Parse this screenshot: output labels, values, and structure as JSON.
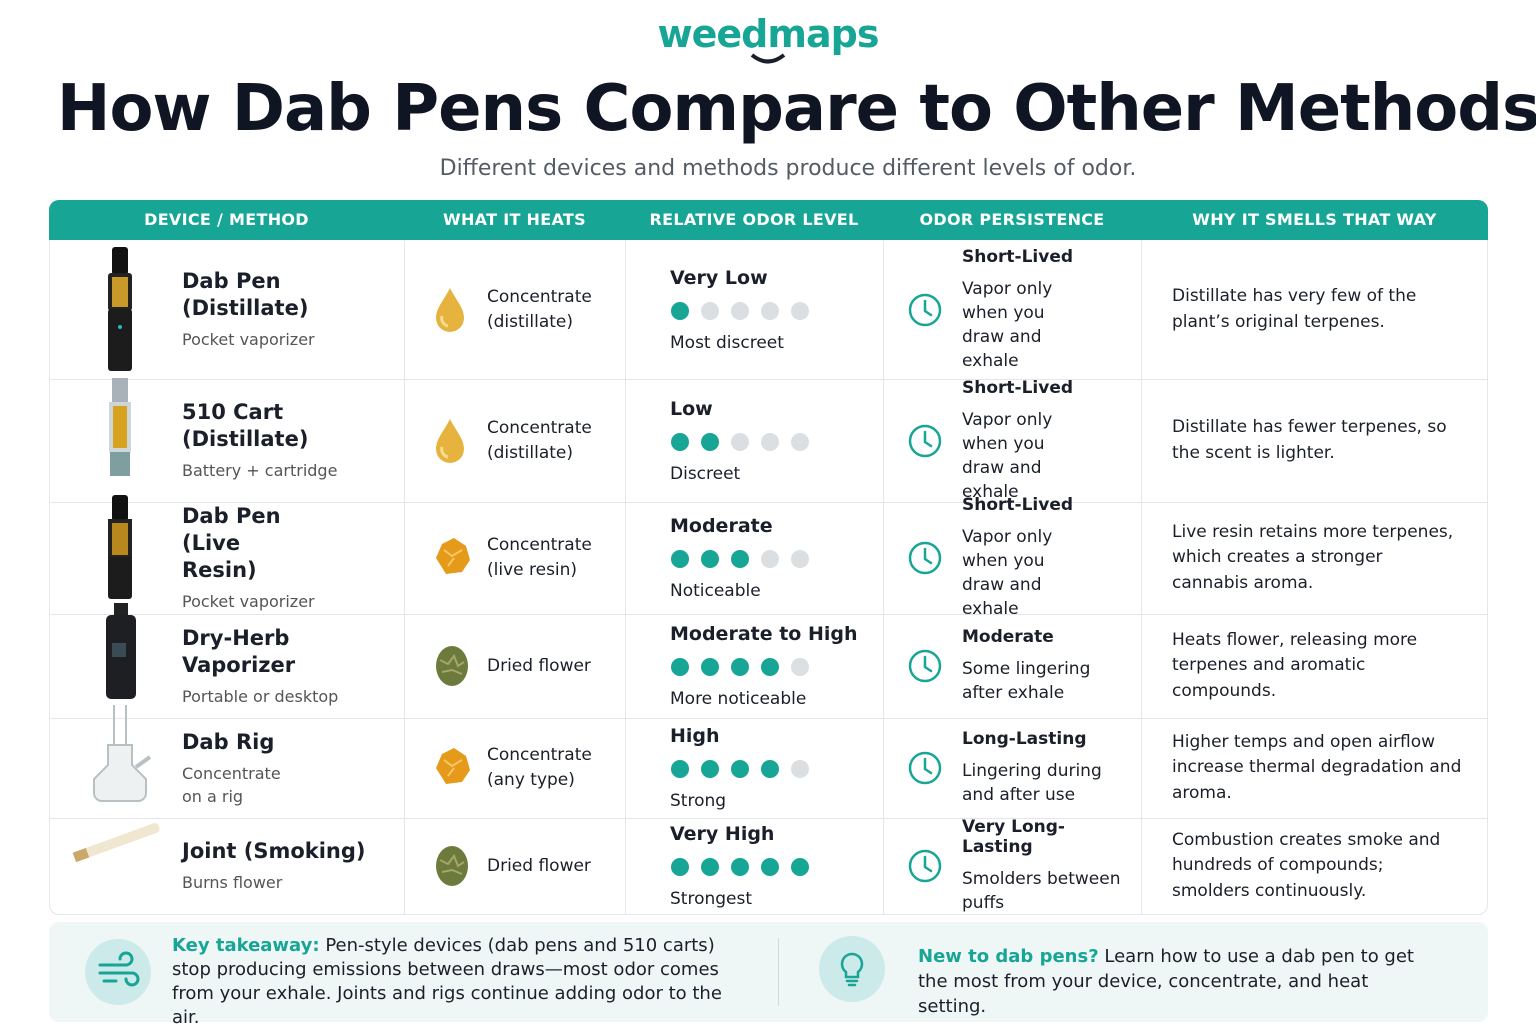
{
  "header": {
    "logo": "weedmaps",
    "title": "How Dab Pens Compare to Other Methods",
    "subtitle": "Different devices and methods produce different levels of odor."
  },
  "table": {
    "columns": [
      "DEVICE / METHOD",
      "WHAT IT HEATS",
      "RELATIVE ODOR LEVEL",
      "ODOR PERSISTENCE",
      "WHY IT SMELLS THAT WAY"
    ],
    "odor_scale_max": 5,
    "rows": [
      {
        "device": "Dab Pen (Distillate)",
        "device_note": "Pocket vaporizer",
        "heats": "Concentrate (distillate)",
        "odor_level": "Very Low",
        "odor_dots": 1,
        "odor_note": "Most discreet",
        "persistence": "Short-Lived",
        "persistence_note": "Vapor only when you draw and exhale",
        "why": "Distillate has very few of the plant’s original terpenes."
      },
      {
        "device": "510 Cart (Distillate)",
        "device_note": "Battery + cartridge",
        "heats": "Concentrate (distillate)",
        "odor_level": "Low",
        "odor_dots": 2,
        "odor_note": "Discreet",
        "persistence": "Short-Lived",
        "persistence_note": "Vapor only when you draw and exhale",
        "why": "Distillate has fewer terpenes, so the scent is lighter."
      },
      {
        "device": "Dab Pen (Live Resin)",
        "device_note": "Pocket vaporizer",
        "heats": "Concentrate (live resin)",
        "odor_level": "Moderate",
        "odor_dots": 3,
        "odor_note": "Noticeable",
        "persistence": "Short-Lived",
        "persistence_note": "Vapor only when you draw and exhale",
        "why": "Live resin retains more terpenes, which creates a stronger cannabis aroma."
      },
      {
        "device": "Dry-Herb Vaporizer",
        "device_note": "Portable or desktop",
        "heats": "Dried flower",
        "odor_level": "Moderate to High",
        "odor_dots": 4,
        "odor_note": "More noticeable",
        "persistence": "Moderate",
        "persistence_note": "Some lingering after exhale",
        "why": "Heats flower, releasing more terpenes and aromatic compounds."
      },
      {
        "device": "Dab Rig",
        "device_note": "Concentrate on a rig",
        "heats": "Concentrate (any type)",
        "odor_level": "High",
        "odor_dots": 4,
        "odor_note": "Strong",
        "persistence": "Long-Lasting",
        "persistence_note": "Lingering during and after use",
        "why": "Higher temps and open airflow increase thermal degradation and aroma."
      },
      {
        "device": "Joint (Smoking)",
        "device_note": "Burns flower",
        "heats": "Dried flower",
        "odor_level": "Very High",
        "odor_dots": 5,
        "odor_note": "Strongest",
        "persistence": "Very Long-Lasting",
        "persistence_note": "Smolders between puffs",
        "why": "Combustion creates smoke and hundreds of compounds; smolders continuously."
      }
    ]
  },
  "footer": {
    "takeaway_label": "Key takeaway:",
    "takeaway_text": "Pen-style devices (dab pens and 510 carts) stop producing emissions between draws—most odor comes from your exhale. Joints and rigs continue adding odor to the air.",
    "new_label": "New to dab pens?",
    "new_text": "Learn how to use a dab pen to get the most from your device, concentrate, and heat setting."
  }
}
